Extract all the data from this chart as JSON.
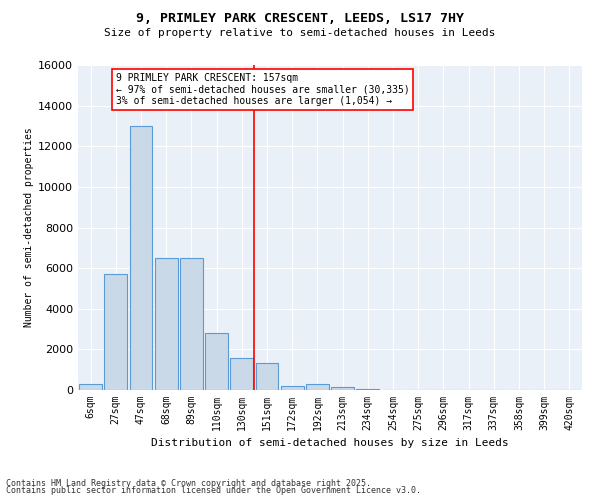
{
  "title": "9, PRIMLEY PARK CRESCENT, LEEDS, LS17 7HY",
  "subtitle": "Size of property relative to semi-detached houses in Leeds",
  "xlabel": "Distribution of semi-detached houses by size in Leeds",
  "ylabel": "Number of semi-detached properties",
  "categories": [
    "6sqm",
    "27sqm",
    "47sqm",
    "68sqm",
    "89sqm",
    "110sqm",
    "130sqm",
    "151sqm",
    "172sqm",
    "192sqm",
    "213sqm",
    "234sqm",
    "254sqm",
    "275sqm",
    "296sqm",
    "317sqm",
    "337sqm",
    "358sqm",
    "399sqm",
    "420sqm"
  ],
  "values": [
    300,
    5700,
    13000,
    6500,
    6500,
    2800,
    1600,
    1350,
    200,
    280,
    150,
    50,
    0,
    0,
    0,
    0,
    0,
    0,
    0,
    0
  ],
  "bar_color": "#c9d9e8",
  "bar_edge_color": "#5b9bd5",
  "vline_x_index": 7,
  "vline_color": "red",
  "annotation_title": "9 PRIMLEY PARK CRESCENT: 157sqm",
  "annotation_line1": "← 97% of semi-detached houses are smaller (30,335)",
  "annotation_line2": "3% of semi-detached houses are larger (1,054) →",
  "ylim": [
    0,
    16000
  ],
  "yticks": [
    0,
    2000,
    4000,
    6000,
    8000,
    10000,
    12000,
    14000,
    16000
  ],
  "footer_line1": "Contains HM Land Registry data © Crown copyright and database right 2025.",
  "footer_line2": "Contains public sector information licensed under the Open Government Licence v3.0.",
  "background_color": "#eaf0f8"
}
